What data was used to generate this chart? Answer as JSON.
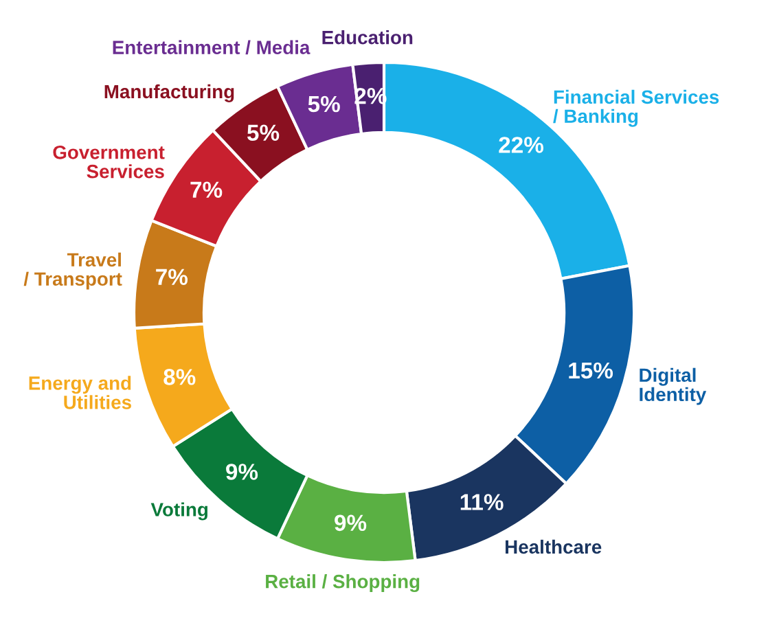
{
  "chart_data": {
    "type": "donut",
    "categories": [
      "Financial Services\n/ Banking",
      "Digital\nIdentity",
      "Healthcare",
      "Retail / Shopping",
      "Voting",
      "Energy and\nUtilities",
      "Travel\n/ Transport",
      "Government\nServices",
      "Manufacturing",
      "Entertainment / Media",
      "Education"
    ],
    "values": [
      22,
      15,
      11,
      9,
      9,
      8,
      7,
      7,
      5,
      5,
      2
    ],
    "value_labels": [
      "22%",
      "15%",
      "11%",
      "9%",
      "9%",
      "8%",
      "7%",
      "7%",
      "5%",
      "5%",
      "2%"
    ],
    "colors": [
      "#1ab0e8",
      "#0d5fa5",
      "#1a3560",
      "#5ab043",
      "#0a7a3a",
      "#f5a91c",
      "#c87a1a",
      "#c8202f",
      "#8a1020",
      "#6a2d91",
      "#4a2070"
    ],
    "legend": false
  }
}
